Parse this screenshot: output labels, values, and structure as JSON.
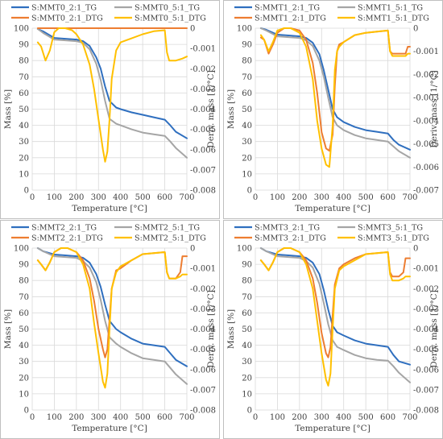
{
  "colors": {
    "tg_0_2": "#2f6fbf",
    "tg_0_5": "#a5a5a5",
    "dtg_0_2": "#ed7d31",
    "dtg_0_5": "#ffc000",
    "grid": "#d9d9d9",
    "axis_text": "#404040",
    "panel_border": "#bfbfbf"
  },
  "chart_data": [
    {
      "type": "line",
      "xlabel": "Temperature [°C]",
      "ylabel": "Mass [%]",
      "y2label": "Deriv. mass [1/°C]",
      "xlim": [
        0,
        700
      ],
      "xticks": [
        0,
        100,
        200,
        300,
        400,
        500,
        600,
        700
      ],
      "ylim": [
        0,
        100
      ],
      "yticks": [
        0,
        10,
        20,
        30,
        40,
        50,
        60,
        70,
        80,
        90,
        100
      ],
      "y2lim": [
        -0.008,
        0
      ],
      "y2ticks": [
        0,
        -0.001,
        -0.002,
        -0.003,
        -0.004,
        -0.005,
        -0.006,
        -0.007,
        -0.008
      ],
      "legend": "top",
      "grid": true,
      "series": [
        {
          "name": "S:MMT0_2:1_TG",
          "axis": "left",
          "color_key": "tg_0_2",
          "x": [
            25,
            50,
            100,
            150,
            200,
            230,
            260,
            290,
            310,
            330,
            350,
            380,
            400,
            450,
            500,
            550,
            600,
            625,
            650,
            700
          ],
          "y": [
            99.5,
            98,
            94,
            93.5,
            93,
            92,
            89,
            82,
            75,
            64,
            55,
            51,
            50,
            48,
            46.5,
            45,
            43.5,
            40,
            36,
            32
          ]
        },
        {
          "name": "S:MMT0_5:1_TG",
          "axis": "left",
          "color_key": "tg_0_5",
          "x": [
            25,
            50,
            100,
            150,
            200,
            230,
            260,
            290,
            310,
            330,
            350,
            380,
            400,
            450,
            500,
            550,
            600,
            625,
            650,
            700
          ],
          "y": [
            99.5,
            97,
            93,
            92.5,
            92,
            91,
            87,
            78,
            68,
            55,
            44,
            41,
            40,
            37.5,
            35.5,
            34.5,
            33.5,
            30,
            26,
            20
          ]
        },
        {
          "name": "S:MMT0_2:1_DTG",
          "axis": "right",
          "color_key": "dtg_0_2",
          "x": [
            25,
            100,
            200,
            300,
            400,
            500,
            600,
            700
          ],
          "y": [
            0,
            0,
            0,
            0,
            0,
            0,
            0,
            0
          ]
        },
        {
          "name": "S:MMT0_5:1_DTG",
          "axis": "right",
          "color_key": "dtg_0_5",
          "x": [
            25,
            40,
            60,
            80,
            100,
            120,
            150,
            180,
            200,
            230,
            260,
            280,
            300,
            320,
            330,
            340,
            350,
            360,
            380,
            400,
            450,
            500,
            550,
            600,
            610,
            620,
            650,
            680,
            700
          ],
          "y": [
            -0.0007,
            -0.0009,
            -0.0016,
            -0.0011,
            -0.0002,
            0,
            0,
            -0.0001,
            -0.0003,
            -0.0008,
            -0.0018,
            -0.003,
            -0.0045,
            -0.006,
            -0.0066,
            -0.0061,
            -0.0045,
            -0.0025,
            -0.0011,
            -0.0007,
            -0.0005,
            -0.0003,
            -0.00015,
            -0.0001,
            -0.0012,
            -0.0016,
            -0.0016,
            -0.0015,
            -0.0014
          ]
        }
      ]
    },
    {
      "type": "line",
      "xlabel": "Temperature [°C]",
      "ylabel": "Mass [%]",
      "y2label": "Deriv. mass [1/°C]",
      "xlim": [
        0,
        700
      ],
      "xticks": [
        0,
        100,
        200,
        300,
        400,
        500,
        600,
        700
      ],
      "ylim": [
        0,
        100
      ],
      "yticks": [
        0,
        10,
        20,
        30,
        40,
        50,
        60,
        70,
        80,
        90,
        100
      ],
      "y2lim": [
        -0.007,
        0
      ],
      "y2ticks": [
        0,
        -0.001,
        -0.002,
        -0.003,
        -0.004,
        -0.005,
        -0.006,
        -0.007
      ],
      "legend": "top",
      "grid": true,
      "series": [
        {
          "name": "S:MMT1_2:1_TG",
          "axis": "left",
          "color_key": "tg_0_2",
          "x": [
            25,
            50,
            100,
            150,
            200,
            230,
            260,
            290,
            310,
            330,
            350,
            370,
            400,
            450,
            500,
            550,
            600,
            625,
            650,
            700
          ],
          "y": [
            100,
            99,
            96,
            95.5,
            95,
            94,
            91,
            84,
            74,
            62,
            50,
            45,
            42,
            39,
            37,
            36,
            35,
            31,
            28,
            25
          ]
        },
        {
          "name": "S:MMT1_5:1_TG",
          "axis": "left",
          "color_key": "tg_0_5",
          "x": [
            25,
            50,
            100,
            150,
            200,
            230,
            260,
            290,
            310,
            330,
            350,
            370,
            400,
            450,
            500,
            550,
            600,
            625,
            650,
            700
          ],
          "y": [
            100,
            98.5,
            95,
            94.5,
            94,
            92.5,
            89,
            80,
            70,
            57,
            45,
            40,
            37,
            34,
            32,
            31,
            30,
            27,
            24,
            20
          ]
        },
        {
          "name": "S:MMT1_2:1_DTG",
          "axis": "right",
          "color_key": "dtg_0_2",
          "x": [
            25,
            40,
            60,
            80,
            100,
            130,
            160,
            200,
            230,
            260,
            280,
            300,
            320,
            335,
            350,
            360,
            370,
            380,
            400,
            450,
            500,
            550,
            600,
            610,
            620,
            650,
            680,
            690,
            700
          ],
          "y": [
            -0.0004,
            -0.0005,
            -0.0011,
            -0.0007,
            -0.0002,
            0,
            0,
            -0.0001,
            -0.0005,
            -0.0015,
            -0.0028,
            -0.0045,
            -0.0052,
            -0.0053,
            -0.0046,
            -0.0025,
            -0.001,
            -0.0007,
            -0.0006,
            -0.0003,
            -0.0002,
            -0.00015,
            -0.0001,
            -0.001,
            -0.0011,
            -0.0011,
            -0.0011,
            -0.0008,
            -0.0008
          ]
        },
        {
          "name": "S:MMT1_5:1_DTG",
          "axis": "right",
          "color_key": "dtg_0_5",
          "x": [
            25,
            40,
            60,
            80,
            100,
            130,
            160,
            200,
            230,
            260,
            280,
            300,
            320,
            335,
            350,
            360,
            370,
            380,
            400,
            450,
            500,
            550,
            600,
            610,
            620,
            650,
            680,
            690,
            700
          ],
          "y": [
            -0.0003,
            -0.0005,
            -0.001,
            -0.0006,
            -0.0001,
            0,
            0,
            -0.0002,
            -0.0008,
            -0.0022,
            -0.004,
            -0.0052,
            -0.0059,
            -0.006,
            -0.0042,
            -0.0018,
            -0.001,
            -0.0008,
            -0.0006,
            -0.0003,
            -0.0002,
            -0.00015,
            -0.0001,
            -0.001,
            -0.0012,
            -0.0012,
            -0.0012,
            -0.0011,
            -0.0011
          ]
        }
      ]
    },
    {
      "type": "line",
      "xlabel": "Temperature [°C]",
      "ylabel": "Mass [%]",
      "y2label": "Deriv. mass [1/°C]",
      "xlim": [
        0,
        700
      ],
      "xticks": [
        0,
        100,
        200,
        300,
        400,
        500,
        600,
        700
      ],
      "ylim": [
        0,
        100
      ],
      "yticks": [
        0,
        10,
        20,
        30,
        40,
        50,
        60,
        70,
        80,
        90,
        100
      ],
      "y2lim": [
        -0.008,
        0
      ],
      "y2ticks": [
        0,
        -0.001,
        -0.002,
        -0.003,
        -0.004,
        -0.005,
        -0.006,
        -0.007,
        -0.008
      ],
      "legend": "top",
      "grid": true,
      "series": [
        {
          "name": "S:MMT2_2:1_TG",
          "axis": "left",
          "color_key": "tg_0_2",
          "x": [
            25,
            50,
            100,
            150,
            200,
            230,
            260,
            290,
            310,
            330,
            350,
            380,
            400,
            450,
            500,
            550,
            600,
            625,
            650,
            700
          ],
          "y": [
            100,
            98,
            96,
            95.5,
            95,
            94,
            91,
            84,
            76,
            65,
            55,
            50,
            48,
            44,
            41,
            40,
            39,
            35,
            31,
            27
          ]
        },
        {
          "name": "S:MMT2_5:1_TG",
          "axis": "left",
          "color_key": "tg_0_5",
          "x": [
            25,
            50,
            100,
            150,
            200,
            230,
            260,
            290,
            310,
            330,
            350,
            380,
            400,
            450,
            500,
            550,
            600,
            625,
            650,
            700
          ],
          "y": [
            100,
            98,
            95,
            94.5,
            94,
            92,
            88,
            79,
            68,
            55,
            45,
            41,
            39,
            35,
            32,
            31,
            30,
            26,
            22,
            16
          ]
        },
        {
          "name": "S:MMT2_2:1_DTG",
          "axis": "right",
          "color_key": "dtg_0_2",
          "x": [
            25,
            40,
            60,
            80,
            100,
            130,
            160,
            200,
            230,
            260,
            280,
            300,
            320,
            330,
            340,
            350,
            360,
            380,
            400,
            450,
            500,
            550,
            600,
            610,
            620,
            650,
            670,
            680,
            700
          ],
          "y": [
            -0.0006,
            -0.0008,
            -0.0011,
            -0.0007,
            -0.0002,
            0,
            0,
            -0.0002,
            -0.0006,
            -0.0015,
            -0.0026,
            -0.004,
            -0.005,
            -0.0054,
            -0.005,
            -0.0035,
            -0.002,
            -0.0011,
            -0.001,
            -0.0006,
            -0.0003,
            -0.00025,
            -0.0002,
            -0.0012,
            -0.0015,
            -0.0015,
            -0.0012,
            -0.0004,
            -0.0004
          ]
        },
        {
          "name": "S:MMT2_5:1_DTG",
          "axis": "right",
          "color_key": "dtg_0_5",
          "x": [
            25,
            40,
            60,
            80,
            100,
            130,
            160,
            200,
            230,
            260,
            280,
            300,
            320,
            330,
            340,
            350,
            360,
            380,
            400,
            450,
            500,
            550,
            600,
            610,
            620,
            650,
            670,
            680,
            700
          ],
          "y": [
            -0.0006,
            -0.0008,
            -0.0011,
            -0.0007,
            -0.0002,
            0,
            0,
            -0.0002,
            -0.0008,
            -0.002,
            -0.0037,
            -0.0052,
            -0.0066,
            -0.0069,
            -0.0062,
            -0.004,
            -0.002,
            -0.0012,
            -0.0009,
            -0.0006,
            -0.0003,
            -0.00025,
            -0.0002,
            -0.0012,
            -0.0015,
            -0.0015,
            -0.0014,
            -0.0013,
            -0.0013
          ]
        }
      ]
    },
    {
      "type": "line",
      "xlabel": "Temperature [°C]",
      "ylabel": "Mass [%]",
      "y2label": "Deriv. mass [1/°C]",
      "xlim": [
        0,
        700
      ],
      "xticks": [
        0,
        100,
        200,
        300,
        400,
        500,
        600,
        700
      ],
      "ylim": [
        0,
        100
      ],
      "yticks": [
        0,
        10,
        20,
        30,
        40,
        50,
        60,
        70,
        80,
        90,
        100
      ],
      "y2lim": [
        -0.008,
        0
      ],
      "y2ticks": [
        0,
        -0.001,
        -0.002,
        -0.003,
        -0.004,
        -0.005,
        -0.006,
        -0.007,
        -0.008
      ],
      "legend": "top",
      "grid": true,
      "series": [
        {
          "name": "S:MMT3_2:1_TG",
          "axis": "left",
          "color_key": "tg_0_2",
          "x": [
            25,
            50,
            100,
            150,
            200,
            230,
            260,
            290,
            310,
            330,
            350,
            370,
            400,
            450,
            500,
            550,
            600,
            625,
            650,
            700
          ],
          "y": [
            100,
            98,
            96,
            95.5,
            95,
            94,
            91,
            84,
            74,
            62,
            52,
            48,
            46,
            43,
            41,
            40,
            39,
            34,
            30,
            28
          ]
        },
        {
          "name": "S:MMT3_5:1_TG",
          "axis": "left",
          "color_key": "tg_0_5",
          "x": [
            25,
            50,
            100,
            150,
            200,
            230,
            260,
            290,
            310,
            330,
            350,
            370,
            400,
            450,
            500,
            550,
            600,
            625,
            650,
            700
          ],
          "y": [
            100,
            98,
            95,
            94.5,
            94,
            92,
            88,
            78,
            66,
            53,
            43,
            39,
            37,
            34,
            32,
            31,
            30.5,
            27,
            23,
            17
          ]
        },
        {
          "name": "S:MMT3_2:1_DTG",
          "axis": "right",
          "color_key": "dtg_0_2",
          "x": [
            25,
            40,
            60,
            80,
            100,
            130,
            160,
            200,
            230,
            260,
            280,
            300,
            320,
            330,
            340,
            350,
            360,
            380,
            400,
            450,
            500,
            550,
            600,
            610,
            620,
            650,
            670,
            680,
            700
          ],
          "y": [
            -0.0006,
            -0.0008,
            -0.0011,
            -0.0007,
            -0.0002,
            0,
            0,
            -0.0002,
            -0.0006,
            -0.0015,
            -0.0027,
            -0.0042,
            -0.0052,
            -0.0054,
            -0.0049,
            -0.0033,
            -0.0018,
            -0.001,
            -0.0008,
            -0.0005,
            -0.0003,
            -0.00025,
            -0.0002,
            -0.0012,
            -0.0014,
            -0.0014,
            -0.0012,
            -0.0005,
            -0.0005
          ]
        },
        {
          "name": "S:MMT3_5:1_DTG",
          "axis": "right",
          "color_key": "dtg_0_5",
          "x": [
            25,
            40,
            60,
            80,
            100,
            130,
            160,
            200,
            230,
            260,
            280,
            300,
            320,
            330,
            340,
            350,
            360,
            380,
            400,
            450,
            500,
            550,
            600,
            610,
            620,
            650,
            670,
            680,
            700
          ],
          "y": [
            -0.0006,
            -0.0008,
            -0.0011,
            -0.0007,
            -0.0002,
            0,
            0,
            -0.0002,
            -0.0008,
            -0.002,
            -0.0036,
            -0.0052,
            -0.0065,
            -0.0068,
            -0.0062,
            -0.004,
            -0.002,
            -0.0011,
            -0.0009,
            -0.0006,
            -0.0003,
            -0.00025,
            -0.0002,
            -0.0013,
            -0.0016,
            -0.0016,
            -0.0015,
            -0.0014,
            -0.0014
          ]
        }
      ]
    }
  ]
}
